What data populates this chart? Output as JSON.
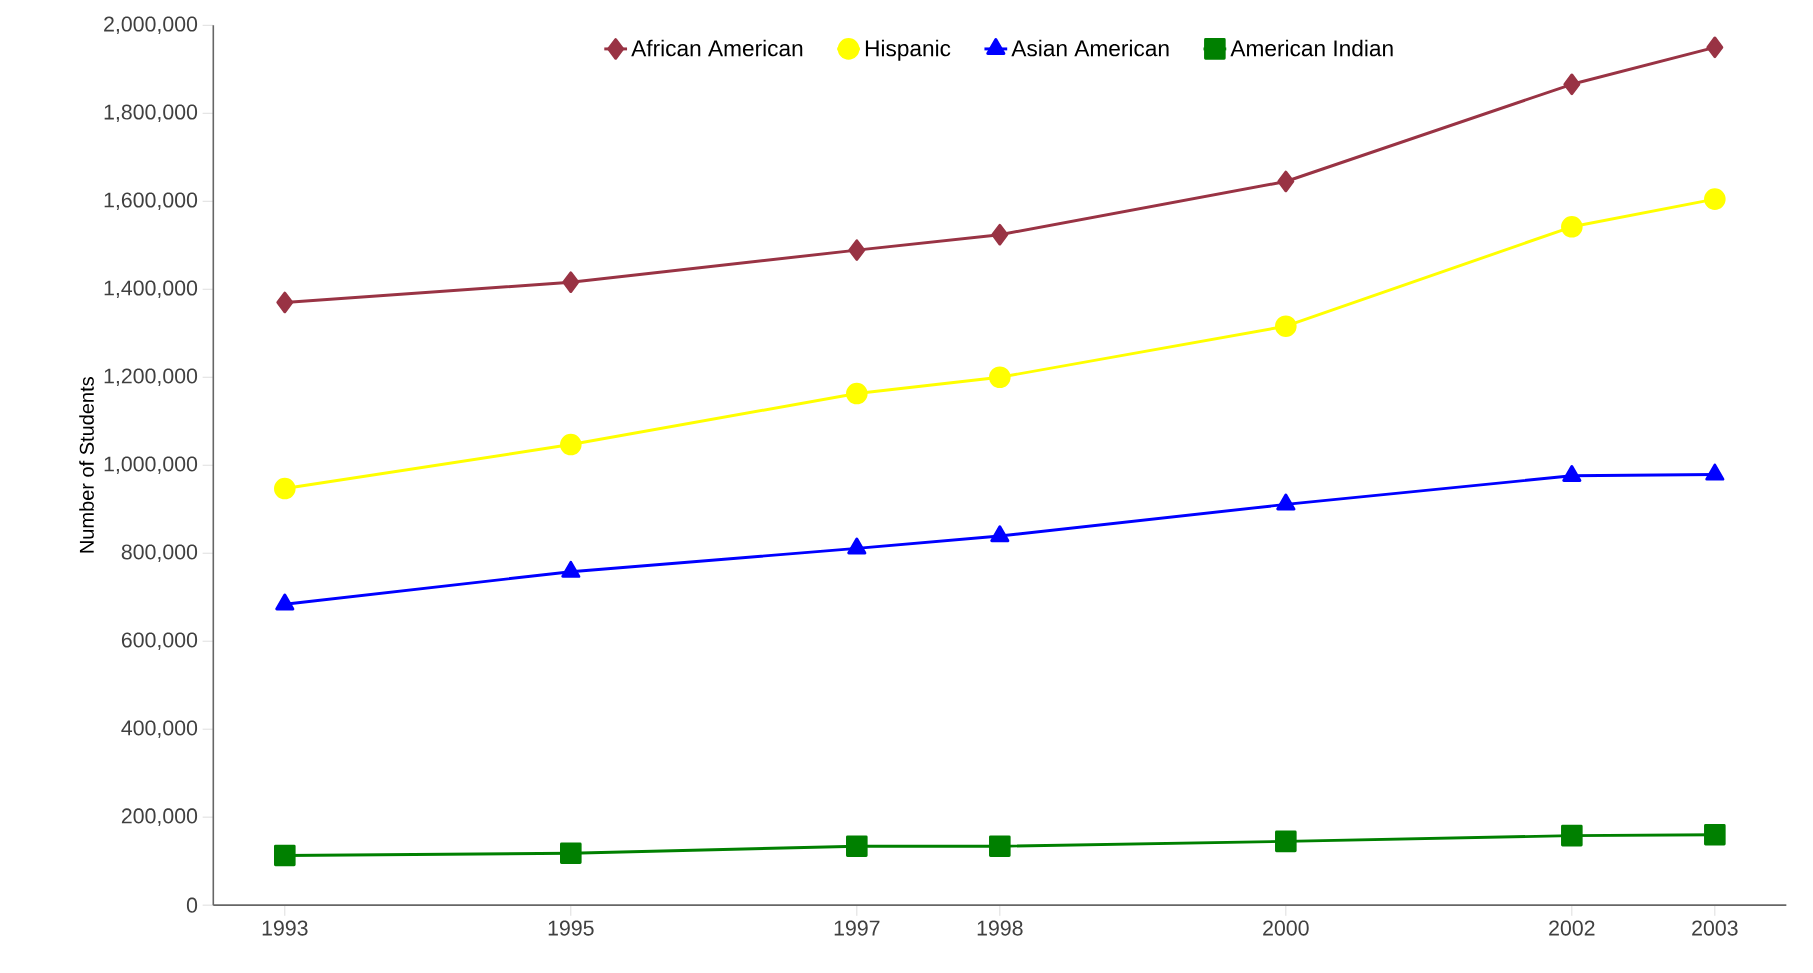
{
  "chart_data": {
    "type": "line",
    "ylabel": "Number of Students",
    "x": [
      1993,
      1995,
      1997,
      1998,
      2000,
      2002,
      2003
    ],
    "xlim": [
      1992.5,
      2003.5
    ],
    "xticks": [
      1993,
      1995,
      1997,
      1998,
      2000,
      2002,
      2003
    ],
    "ylim": [
      0,
      2000000
    ],
    "yticks": [
      {
        "value": 0,
        "label": "0"
      },
      {
        "value": 200000,
        "label": "200,000"
      },
      {
        "value": 400000,
        "label": "400,000"
      },
      {
        "value": 600000,
        "label": "600,000"
      },
      {
        "value": 800000,
        "label": "800,000"
      },
      {
        "value": 1000000,
        "label": "1,000,000"
      },
      {
        "value": 1200000,
        "label": "1,200,000"
      },
      {
        "value": 1400000,
        "label": "1,400,000"
      },
      {
        "value": 1600000,
        "label": "1,600,000"
      },
      {
        "value": 1800000,
        "label": "1,800,000"
      },
      {
        "value": 2000000,
        "label": "2,000,000"
      }
    ],
    "grid": false,
    "legend": "top",
    "line_style": "solid",
    "series": [
      {
        "name": "African American",
        "color": "#993344",
        "marker": "diamond",
        "values": [
          1370000,
          1416000,
          1489000,
          1524000,
          1645000,
          1866000,
          1950000
        ]
      },
      {
        "name": "Hispanic",
        "color": "#ffff00",
        "marker": "circle",
        "values": [
          947000,
          1047000,
          1163000,
          1200000,
          1316000,
          1542000,
          1605000
        ]
      },
      {
        "name": "Asian American",
        "color": "#0000ff",
        "marker": "triangle",
        "values": [
          684000,
          758000,
          811000,
          839000,
          911000,
          976000,
          979000
        ]
      },
      {
        "name": "American Indian",
        "color": "#008000",
        "marker": "square",
        "values": [
          113000,
          118000,
          134000,
          134000,
          145000,
          158000,
          160000
        ]
      }
    ]
  }
}
